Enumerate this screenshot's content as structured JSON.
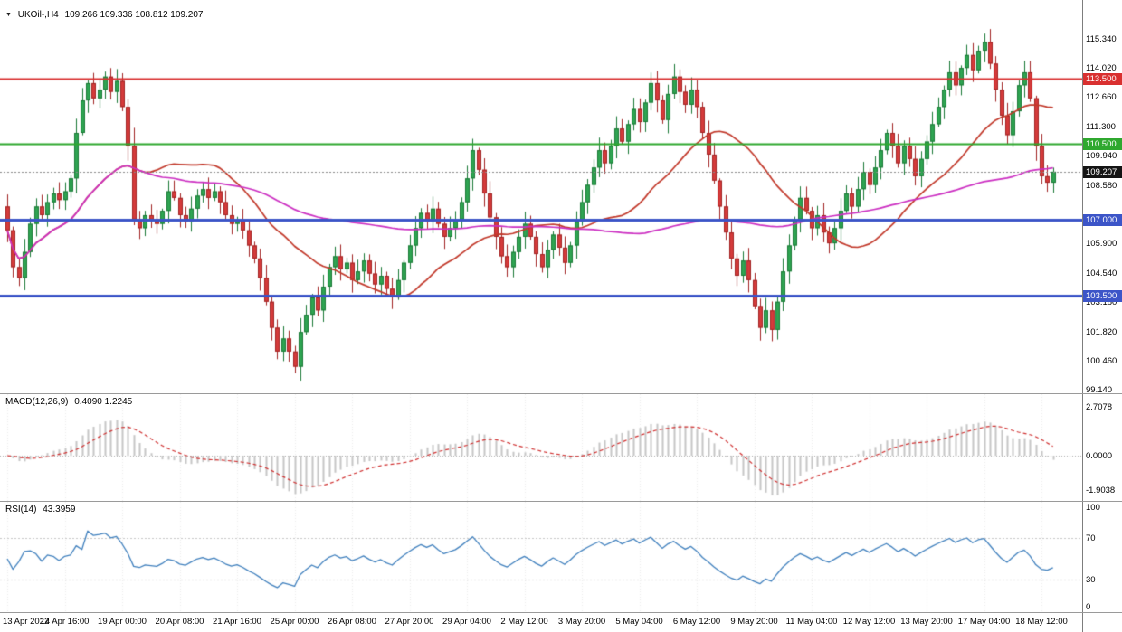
{
  "header": {
    "dropdown_icon": "▼",
    "symbol": "UKOil-,H4",
    "ohlc": "109.266 109.336 108.812 109.207"
  },
  "panes": {
    "macd": {
      "label": "MACD(12,26,9)",
      "values": "0.4090 1.2245",
      "axis_labels": [
        "2.7078",
        "0.0000",
        "-1.9038"
      ]
    },
    "rsi": {
      "label": "RSI(14)",
      "values": "43.3959",
      "axis_labels": [
        "100",
        "70",
        "30",
        "0"
      ]
    }
  },
  "palette": {
    "background": "#FFFFFF",
    "candle_up": "#2FA452",
    "candle_up_border": "#1C7A37",
    "candle_down": "#D43B3B",
    "candle_down_border": "#A22525",
    "ma_fast_red": "#C2392B",
    "ma_slow_magenta": "#CC2FC2",
    "hline_red": "#D93030",
    "hline_green": "#2FA82F",
    "hline_blue": "#3C55C8",
    "current_price_badge": "#141414",
    "current_price_line": "#8a8a8a",
    "macd_histogram": "#C6C6C6",
    "macd_signal": "#D03030",
    "rsi_line": "#4181BE",
    "grid": "#ECECEC",
    "level_dotted": "#C8C8C8",
    "axis_text": "#000000",
    "separator": "#9A9A9A"
  },
  "chart_data": {
    "type": "candlestick",
    "title": "UKOil- H4 candlestick chart with MACD(12,26,9) and RSI(14)",
    "symbol": "UKOil-",
    "timeframe": "H4",
    "last_ohlc": {
      "open": 109.266,
      "high": 109.336,
      "low": 108.812,
      "close": 109.207
    },
    "ylim": [
      98.97,
      117.14
    ],
    "y_ticks": [
      115.34,
      114.02,
      112.66,
      111.3,
      109.94,
      108.58,
      105.9,
      104.54,
      103.18,
      101.82,
      100.46,
      99.14
    ],
    "bars_per_x_tick": 10,
    "x_tick_labels": [
      "13 Apr 2022",
      "14 Apr 16:00",
      "19 Apr 00:00",
      "20 Apr 08:00",
      "21 Apr 16:00",
      "25 Apr 00:00",
      "26 Apr 08:00",
      "27 Apr 20:00",
      "29 Apr 04:00",
      "2 May 12:00",
      "3 May 20:00",
      "5 May 04:00",
      "6 May 12:00",
      "9 May 20:00",
      "11 May 04:00",
      "12 May 12:00",
      "13 May 20:00",
      "17 May 04:00",
      "18 May 12:00"
    ],
    "closes": [
      106.5,
      104.8,
      104.3,
      105.5,
      106.8,
      107.6,
      107.2,
      107.8,
      108.2,
      107.9,
      108.3,
      108.9,
      111.0,
      112.5,
      113.3,
      112.6,
      113.0,
      113.6,
      112.9,
      113.4,
      112.2,
      110.4,
      107.0,
      106.6,
      107.2,
      107.0,
      106.8,
      107.4,
      108.3,
      108.0,
      107.2,
      106.9,
      107.5,
      108.1,
      108.4,
      108.0,
      108.3,
      107.8,
      107.2,
      106.8,
      107.0,
      106.5,
      105.8,
      105.2,
      104.3,
      103.2,
      102.0,
      100.9,
      101.5,
      100.9,
      100.2,
      101.8,
      102.6,
      103.4,
      102.8,
      103.9,
      104.8,
      105.3,
      104.7,
      105.0,
      104.2,
      104.6,
      105.1,
      104.5,
      104.0,
      104.4,
      103.8,
      103.4,
      104.2,
      105.0,
      105.8,
      106.6,
      107.3,
      106.9,
      107.5,
      106.8,
      106.2,
      106.6,
      107.0,
      107.8,
      108.9,
      110.2,
      109.3,
      108.2,
      107.1,
      106.2,
      105.3,
      104.8,
      105.5,
      106.2,
      106.8,
      106.2,
      105.4,
      104.8,
      105.6,
      106.3,
      105.7,
      105.0,
      105.8,
      106.9,
      107.8,
      108.6,
      109.4,
      110.2,
      109.6,
      110.4,
      111.2,
      110.6,
      111.4,
      112.1,
      111.5,
      112.4,
      113.3,
      112.5,
      111.6,
      112.8,
      113.6,
      112.9,
      112.3,
      113.0,
      112.2,
      111.0,
      110.0,
      108.8,
      107.6,
      106.4,
      105.2,
      104.4,
      105.1,
      104.2,
      103.0,
      102.0,
      102.8,
      101.9,
      103.2,
      104.6,
      105.8,
      107.0,
      108.0,
      107.4,
      106.6,
      107.2,
      106.4,
      105.9,
      106.6,
      107.4,
      108.2,
      107.6,
      108.4,
      109.2,
      108.6,
      109.4,
      110.2,
      111.0,
      110.4,
      109.6,
      110.4,
      109.8,
      109.0,
      109.8,
      110.6,
      111.4,
      112.2,
      113.0,
      113.8,
      113.2,
      114.0,
      114.6,
      113.9,
      114.8,
      115.2,
      114.2,
      113.0,
      111.8,
      110.9,
      112.0,
      113.2,
      113.8,
      112.6,
      110.4,
      109.0,
      108.7,
      109.207
    ],
    "hlines": [
      {
        "value": 113.5,
        "label": "113.500",
        "color_key": "hline_red",
        "width": 2
      },
      {
        "value": 110.5,
        "label": "110.500",
        "color_key": "hline_green",
        "width": 2
      },
      {
        "value": 107.0,
        "label": "107.000",
        "color_key": "hline_blue",
        "width": 3
      },
      {
        "value": 103.5,
        "label": "103.500",
        "color_key": "hline_blue",
        "width": 3
      }
    ],
    "current_price": {
      "value": 109.207,
      "label": "109.207"
    },
    "indicators": {
      "ma_fast": {
        "type": "SMA",
        "period": 25,
        "color_key": "ma_fast_red"
      },
      "ma_slow": {
        "type": "SMA",
        "period": 90,
        "color_key": "ma_slow_magenta"
      },
      "macd": {
        "fast": 12,
        "slow": 26,
        "signal": 9,
        "current_values": "0.4090 1.2245",
        "axis_range": [
          -1.9038,
          2.7078
        ]
      },
      "rsi": {
        "period": 14,
        "current_value": 43.3959,
        "levels": [
          70,
          30
        ],
        "axis_range": [
          0,
          100
        ]
      }
    }
  }
}
